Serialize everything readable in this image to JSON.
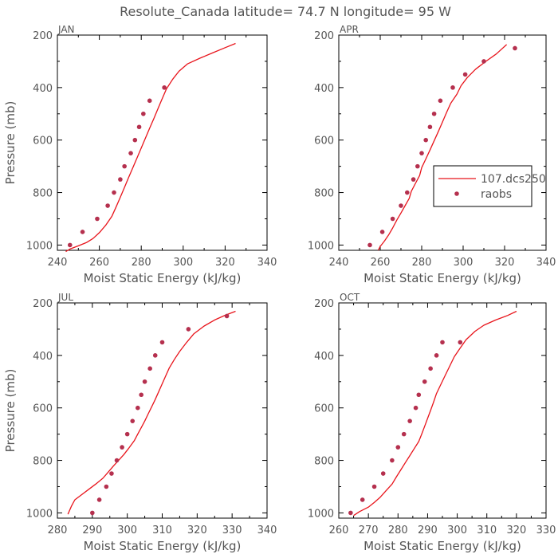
{
  "figure": {
    "title": "Resolute_Canada  latitude= 74.7 N longitude= 95 W"
  },
  "colors": {
    "model": "#e8141b",
    "obs": "#b5304e",
    "text": "#555555",
    "axis": "#000000"
  },
  "legend": {
    "model_label": "107.dcs250",
    "obs_label": "raobs",
    "placement": "inside APR panel, right-middle"
  },
  "chart_data": [
    {
      "type": "line",
      "panel_label": "JAN",
      "xlabel": "Moist Static Energy (kJ/kg)",
      "ylabel": "Pressure (mb)",
      "xlim": [
        240,
        340
      ],
      "ylim": [
        1020,
        200
      ],
      "x_ticks": [
        "240",
        "260",
        "280",
        "300",
        "320",
        "340"
      ],
      "y_ticks": [
        "200",
        "400",
        "600",
        "800",
        "1000"
      ],
      "series": [
        {
          "name": "107.dcs250",
          "style": "line",
          "points": [
            [
              244,
              1025
            ],
            [
              246,
              1015
            ],
            [
              250,
              1003
            ],
            [
              254,
              990
            ],
            [
              257,
              975
            ],
            [
              260,
              953
            ],
            [
              263,
              925
            ],
            [
              266,
              890
            ],
            [
              268,
              855
            ],
            [
              270,
              818
            ],
            [
              272,
              780
            ],
            [
              274,
              742
            ],
            [
              276,
              705
            ],
            [
              278,
              668
            ],
            [
              280,
              630
            ],
            [
              282,
              592
            ],
            [
              284,
              555
            ],
            [
              286,
              518
            ],
            [
              288,
              480
            ],
            [
              290,
              442
            ],
            [
              292,
              405
            ],
            [
              295,
              368
            ],
            [
              298,
              338
            ],
            [
              302,
              310
            ],
            [
              308,
              288
            ],
            [
              314,
              268
            ],
            [
              320,
              248
            ],
            [
              325,
              232
            ]
          ]
        },
        {
          "name": "raobs",
          "style": "scatter",
          "points": [
            [
              246,
              1000
            ],
            [
              252,
              950
            ],
            [
              259,
              900
            ],
            [
              264,
              850
            ],
            [
              267,
              800
            ],
            [
              270,
              750
            ],
            [
              272,
              700
            ],
            [
              275,
              650
            ],
            [
              277,
              600
            ],
            [
              279,
              550
            ],
            [
              281,
              500
            ],
            [
              284,
              450
            ],
            [
              291,
              400
            ]
          ]
        }
      ]
    },
    {
      "type": "line",
      "panel_label": "APR",
      "xlabel": "Moist Static Energy (kJ/kg)",
      "ylabel": "",
      "xlim": [
        240,
        340
      ],
      "ylim": [
        1020,
        200
      ],
      "x_ticks": [
        "240",
        "260",
        "280",
        "300",
        "320",
        "340"
      ],
      "y_ticks": [
        "200",
        "400",
        "600",
        "800",
        "1000"
      ],
      "series": [
        {
          "name": "107.dcs250",
          "style": "line",
          "points": [
            [
              259,
              1020
            ],
            [
              260,
              1005
            ],
            [
              262,
              985
            ],
            [
              264,
              962
            ],
            [
              266,
              935
            ],
            [
              268,
              905
            ],
            [
              270,
              878
            ],
            [
              272,
              850
            ],
            [
              274,
              822
            ],
            [
              275,
              795
            ],
            [
              277,
              765
            ],
            [
              279,
              735
            ],
            [
              280,
              705
            ],
            [
              282,
              672
            ],
            [
              284,
              638
            ],
            [
              286,
              603
            ],
            [
              288,
              568
            ],
            [
              290,
              532
            ],
            [
              292,
              495
            ],
            [
              294,
              460
            ],
            [
              297,
              425
            ],
            [
              299,
              393
            ],
            [
              302,
              362
            ],
            [
              306,
              330
            ],
            [
              311,
              300
            ],
            [
              316,
              272
            ],
            [
              321,
              236
            ]
          ]
        },
        {
          "name": "raobs",
          "style": "scatter",
          "points": [
            [
              255,
              1000
            ],
            [
              261,
              950
            ],
            [
              266,
              900
            ],
            [
              270,
              850
            ],
            [
              273,
              800
            ],
            [
              276,
              750
            ],
            [
              278,
              700
            ],
            [
              280,
              650
            ],
            [
              282,
              600
            ],
            [
              284,
              550
            ],
            [
              286,
              500
            ],
            [
              289,
              450
            ],
            [
              295,
              400
            ],
            [
              301,
              350
            ],
            [
              310,
              300
            ],
            [
              325,
              250
            ]
          ]
        }
      ]
    },
    {
      "type": "line",
      "panel_label": "JUL",
      "xlabel": "Moist Static Energy (kJ/kg)",
      "ylabel": "Pressure (mb)",
      "xlim": [
        280,
        340
      ],
      "ylim": [
        1020,
        200
      ],
      "x_ticks": [
        "280",
        "290",
        "300",
        "310",
        "320",
        "330",
        "340"
      ],
      "y_ticks": [
        "200",
        "400",
        "600",
        "800",
        "1000"
      ],
      "series": [
        {
          "name": "107.dcs250",
          "style": "line",
          "points": [
            [
              283,
              1005
            ],
            [
              284,
              975
            ],
            [
              285,
              950
            ],
            [
              287,
              930
            ],
            [
              289,
              910
            ],
            [
              291,
              890
            ],
            [
              293,
              868
            ],
            [
              294.5,
              845
            ],
            [
              296,
              822
            ],
            [
              297.5,
              800
            ],
            [
              299,
              778
            ],
            [
              300.5,
              752
            ],
            [
              302,
              725
            ],
            [
              303,
              700
            ],
            [
              304,
              675
            ],
            [
              305,
              650
            ],
            [
              306,
              622
            ],
            [
              307,
              595
            ],
            [
              308,
              568
            ],
            [
              309,
              538
            ],
            [
              310,
              508
            ],
            [
              311,
              478
            ],
            [
              312,
              448
            ],
            [
              313.5,
              415
            ],
            [
              315,
              385
            ],
            [
              317,
              350
            ],
            [
              319,
              318
            ],
            [
              322,
              288
            ],
            [
              325,
              265
            ],
            [
              328,
              247
            ],
            [
              331,
              232
            ]
          ]
        },
        {
          "name": "raobs",
          "style": "scatter",
          "points": [
            [
              290,
              1000
            ],
            [
              292,
              950
            ],
            [
              294,
              900
            ],
            [
              295.5,
              850
            ],
            [
              297,
              800
            ],
            [
              298.5,
              750
            ],
            [
              300,
              700
            ],
            [
              301.5,
              650
            ],
            [
              303,
              600
            ],
            [
              304,
              550
            ],
            [
              305,
              500
            ],
            [
              306.5,
              450
            ],
            [
              308,
              400
            ],
            [
              310,
              350
            ],
            [
              317.5,
              300
            ],
            [
              328.5,
              250
            ]
          ]
        }
      ]
    },
    {
      "type": "line",
      "panel_label": "OCT",
      "xlabel": "Moist Static Energy (kJ/kg)",
      "ylabel": "",
      "xlim": [
        260,
        330
      ],
      "ylim": [
        1020,
        200
      ],
      "x_ticks": [
        "260",
        "270",
        "280",
        "290",
        "300",
        "310",
        "320",
        "330"
      ],
      "y_ticks": [
        "200",
        "400",
        "600",
        "800",
        "1000"
      ],
      "series": [
        {
          "name": "107.dcs250",
          "style": "line",
          "points": [
            [
              265,
              1010
            ],
            [
              267,
              995
            ],
            [
              270,
              978
            ],
            [
              272,
              960
            ],
            [
              274,
              940
            ],
            [
              276,
              915
            ],
            [
              278,
              890
            ],
            [
              279.5,
              862
            ],
            [
              281,
              835
            ],
            [
              282.5,
              808
            ],
            [
              284,
              782
            ],
            [
              285.5,
              755
            ],
            [
              287,
              728
            ],
            [
              288,
              700
            ],
            [
              289,
              670
            ],
            [
              290,
              640
            ],
            [
              291,
              610
            ],
            [
              292,
              578
            ],
            [
              293,
              545
            ],
            [
              294.5,
              510
            ],
            [
              296,
              475
            ],
            [
              297.5,
              440
            ],
            [
              299,
              405
            ],
            [
              301,
              372
            ],
            [
              303,
              340
            ],
            [
              306,
              308
            ],
            [
              309,
              285
            ],
            [
              313,
              265
            ],
            [
              317,
              248
            ],
            [
              320,
              232
            ]
          ]
        },
        {
          "name": "raobs",
          "style": "scatter",
          "points": [
            [
              264,
              1000
            ],
            [
              268,
              950
            ],
            [
              272,
              900
            ],
            [
              275,
              850
            ],
            [
              278,
              800
            ],
            [
              280,
              750
            ],
            [
              282,
              700
            ],
            [
              284,
              650
            ],
            [
              286,
              600
            ],
            [
              287,
              550
            ],
            [
              289,
              500
            ],
            [
              291,
              450
            ],
            [
              293,
              400
            ],
            [
              295,
              350
            ],
            [
              301,
              350
            ]
          ]
        }
      ]
    }
  ]
}
